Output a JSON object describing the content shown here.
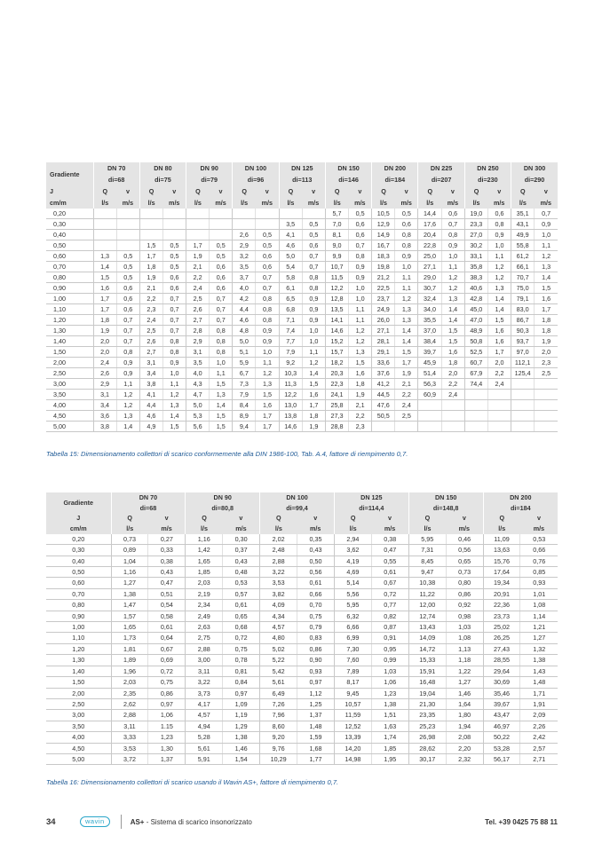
{
  "table1": {
    "gradient_header": [
      "Gradiente",
      "J",
      "cm/m"
    ],
    "groups": [
      [
        "DN 70",
        "di=68"
      ],
      [
        "DN 80",
        "di=75"
      ],
      [
        "DN 90",
        "di=79"
      ],
      [
        "DN 100",
        "di=96"
      ],
      [
        "DN 125",
        "di=113"
      ],
      [
        "DN 150",
        "di=146"
      ],
      [
        "DN 200",
        "di=184"
      ],
      [
        "DN 225",
        "di=207"
      ],
      [
        "DN 250",
        "di=230"
      ],
      [
        "DN 300",
        "di=290"
      ]
    ],
    "q_label": "Q",
    "v_label": "v",
    "q_unit": "l/s",
    "v_unit": "m/s",
    "rows": [
      [
        "0,20",
        "",
        "",
        "",
        "",
        "",
        "",
        "",
        "",
        "",
        "",
        "5,7",
        "0,5",
        "10,5",
        "0,5",
        "14,4",
        "0,6",
        "19,0",
        "0,6",
        "35,1",
        "0,7"
      ],
      [
        "0,30",
        "",
        "",
        "",
        "",
        "",
        "",
        "",
        "",
        "3,5",
        "0,5",
        "7,0",
        "0,6",
        "12,9",
        "0,6",
        "17,6",
        "0,7",
        "23,3",
        "0,8",
        "43,1",
        "0,9"
      ],
      [
        "0,40",
        "",
        "",
        "",
        "",
        "",
        "",
        "2,6",
        "0,5",
        "4,1",
        "0,5",
        "8,1",
        "0,6",
        "14,9",
        "0,8",
        "20,4",
        "0,8",
        "27,0",
        "0,9",
        "49,9",
        "1,0"
      ],
      [
        "0,50",
        "",
        "",
        "1,5",
        "0,5",
        "1,7",
        "0,5",
        "2,9",
        "0,5",
        "4,6",
        "0,6",
        "9,0",
        "0,7",
        "16,7",
        "0,8",
        "22,8",
        "0,9",
        "30,2",
        "1,0",
        "55,8",
        "1,1"
      ],
      [
        "0,60",
        "1,3",
        "0,5",
        "1,7",
        "0,5",
        "1,9",
        "0,5",
        "3,2",
        "0,6",
        "5,0",
        "0,7",
        "9,9",
        "0,8",
        "18,3",
        "0,9",
        "25,0",
        "1,0",
        "33,1",
        "1,1",
        "61,2",
        "1,2"
      ],
      [
        "0,70",
        "1,4",
        "0,5",
        "1,8",
        "0,5",
        "2,1",
        "0,6",
        "3,5",
        "0,6",
        "5,4",
        "0,7",
        "10,7",
        "0,9",
        "19,8",
        "1,0",
        "27,1",
        "1,1",
        "35,8",
        "1,2",
        "66,1",
        "1,3"
      ],
      [
        "0,80",
        "1,5",
        "0,5",
        "1,9",
        "0,6",
        "2,2",
        "0,6",
        "3,7",
        "0,7",
        "5,8",
        "0,8",
        "11,5",
        "0,9",
        "21,2",
        "1,1",
        "29,0",
        "1,2",
        "38,3",
        "1,2",
        "70,7",
        "1,4"
      ],
      [
        "0,90",
        "1,6",
        "0,6",
        "2,1",
        "0,6",
        "2,4",
        "0,6",
        "4,0",
        "0,7",
        "6,1",
        "0,8",
        "12,2",
        "1,0",
        "22,5",
        "1,1",
        "30,7",
        "1,2",
        "40,6",
        "1,3",
        "75,0",
        "1,5"
      ],
      [
        "1,00",
        "1,7",
        "0,6",
        "2,2",
        "0,7",
        "2,5",
        "0,7",
        "4,2",
        "0,8",
        "6,5",
        "0,9",
        "12,8",
        "1,0",
        "23,7",
        "1,2",
        "32,4",
        "1,3",
        "42,8",
        "1,4",
        "79,1",
        "1,6"
      ],
      [
        "1,10",
        "1,7",
        "0,6",
        "2,3",
        "0,7",
        "2,6",
        "0,7",
        "4,4",
        "0,8",
        "6,8",
        "0,9",
        "13,5",
        "1,1",
        "24,9",
        "1,3",
        "34,0",
        "1,4",
        "45,0",
        "1,4",
        "83,0",
        "1,7"
      ],
      [
        "1,20",
        "1,8",
        "0,7",
        "2,4",
        "0,7",
        "2,7",
        "0,7",
        "4,6",
        "0,8",
        "7,1",
        "0,9",
        "14,1",
        "1,1",
        "26,0",
        "1,3",
        "35,5",
        "1,4",
        "47,0",
        "1,5",
        "86,7",
        "1,8"
      ],
      [
        "1,30",
        "1,9",
        "0,7",
        "2,5",
        "0,7",
        "2,8",
        "0,8",
        "4,8",
        "0,9",
        "7,4",
        "1,0",
        "14,6",
        "1,2",
        "27,1",
        "1,4",
        "37,0",
        "1,5",
        "48,9",
        "1,6",
        "90,3",
        "1,8"
      ],
      [
        "1,40",
        "2,0",
        "0,7",
        "2,6",
        "0,8",
        "2,9",
        "0,8",
        "5,0",
        "0,9",
        "7,7",
        "1,0",
        "15,2",
        "1,2",
        "28,1",
        "1,4",
        "38,4",
        "1,5",
        "50,8",
        "1,6",
        "93,7",
        "1,9"
      ],
      [
        "1,50",
        "2,0",
        "0,8",
        "2,7",
        "0,8",
        "3,1",
        "0,8",
        "5,1",
        "1,0",
        "7,9",
        "1,1",
        "15,7",
        "1,3",
        "29,1",
        "1,5",
        "39,7",
        "1,6",
        "52,5",
        "1,7",
        "97,0",
        "2,0"
      ],
      [
        "2,00",
        "2,4",
        "0,9",
        "3,1",
        "0,9",
        "3,5",
        "1,0",
        "5,9",
        "1,1",
        "9,2",
        "1,2",
        "18,2",
        "1,5",
        "33,6",
        "1,7",
        "45,9",
        "1,8",
        "60,7",
        "2,0",
        "112,1",
        "2,3"
      ],
      [
        "2,50",
        "2,6",
        "0,9",
        "3,4",
        "1,0",
        "4,0",
        "1,1",
        "6,7",
        "1,2",
        "10,3",
        "1,4",
        "20,3",
        "1,6",
        "37,6",
        "1,9",
        "51,4",
        "2,0",
        "67,9",
        "2,2",
        "125,4",
        "2,5"
      ],
      [
        "3,00",
        "2,9",
        "1,1",
        "3,8",
        "1,1",
        "4,3",
        "1,5",
        "7,3",
        "1,3",
        "11,3",
        "1,5",
        "22,3",
        "1,8",
        "41,2",
        "2,1",
        "56,3",
        "2,2",
        "74,4",
        "2,4",
        "",
        ""
      ],
      [
        "3,50",
        "3,1",
        "1,2",
        "4,1",
        "1,2",
        "4,7",
        "1,3",
        "7,9",
        "1,5",
        "12,2",
        "1,6",
        "24,1",
        "1,9",
        "44,5",
        "2,2",
        "60,9",
        "2,4",
        "",
        "",
        "",
        ""
      ],
      [
        "4,00",
        "3,4",
        "1,2",
        "4,4",
        "1,3",
        "5,0",
        "1,4",
        "8,4",
        "1,6",
        "13,0",
        "1,7",
        "25,8",
        "2,1",
        "47,6",
        "2,4",
        "",
        "",
        "",
        "",
        "",
        ""
      ],
      [
        "4,50",
        "3,6",
        "1,3",
        "4,6",
        "1,4",
        "5,3",
        "1,5",
        "8,9",
        "1,7",
        "13,8",
        "1,8",
        "27,3",
        "2,2",
        "50,5",
        "2,5",
        "",
        "",
        "",
        "",
        "",
        ""
      ],
      [
        "5,00",
        "3,8",
        "1,4",
        "4,9",
        "1,5",
        "5,6",
        "1,5",
        "9,4",
        "1,7",
        "14,6",
        "1,9",
        "28,8",
        "2,3",
        "",
        "",
        "",
        "",
        "",
        "",
        "",
        ""
      ]
    ],
    "caption": "Tabella 15: Dimensionamento collettori di scarico conformemente alla DIN 1986-100, Tab. A.4, fattore di riempimento 0,7."
  },
  "table2": {
    "gradient_header": [
      "Gradiente",
      "J",
      "cm/m"
    ],
    "groups": [
      [
        "DN 70",
        "di=68"
      ],
      [
        "DN 90",
        "di=80,8"
      ],
      [
        "DN 100",
        "di=99,4"
      ],
      [
        "DN 125",
        "di=114,4"
      ],
      [
        "DN 150",
        "di=148,8"
      ],
      [
        "DN 200",
        "di=184"
      ]
    ],
    "q_label": "Q",
    "v_label": "v",
    "q_unit": "l/s",
    "v_unit": "m/s",
    "rows": [
      [
        "0,20",
        "0,73",
        "0,27",
        "1,16",
        "0,30",
        "2,02",
        "0,35",
        "2,94",
        "0,38",
        "5,95",
        "0,46",
        "11,09",
        "0,53"
      ],
      [
        "0,30",
        "0,89",
        "0,33",
        "1,42",
        "0,37",
        "2,48",
        "0,43",
        "3,62",
        "0,47",
        "7,31",
        "0,56",
        "13,63",
        "0,66"
      ],
      [
        "0,40",
        "1,04",
        "0,38",
        "1,65",
        "0,43",
        "2,88",
        "0,50",
        "4,19",
        "0,55",
        "8,45",
        "0,65",
        "15,76",
        "0,76"
      ],
      [
        "0,50",
        "1,16",
        "0,43",
        "1,85",
        "0,48",
        "3,22",
        "0,56",
        "4,69",
        "0,61",
        "9,47",
        "0,73",
        "17,64",
        "0,85"
      ],
      [
        "0,60",
        "1,27",
        "0,47",
        "2,03",
        "0,53",
        "3,53",
        "0,61",
        "5,14",
        "0,67",
        "10,38",
        "0,80",
        "19,34",
        "0,93"
      ],
      [
        "0,70",
        "1,38",
        "0,51",
        "2,19",
        "0,57",
        "3,82",
        "0,66",
        "5,56",
        "0,72",
        "11,22",
        "0,86",
        "20,91",
        "1,01"
      ],
      [
        "0,80",
        "1,47",
        "0,54",
        "2,34",
        "0,61",
        "4,09",
        "0,70",
        "5,95",
        "0,77",
        "12,00",
        "0,92",
        "22,36",
        "1,08"
      ],
      [
        "0,90",
        "1,57",
        "0,58",
        "2,49",
        "0,65",
        "4,34",
        "0,75",
        "6,32",
        "0,82",
        "12,74",
        "0,98",
        "23,73",
        "1,14"
      ],
      [
        "1,00",
        "1,65",
        "0,61",
        "2,63",
        "0,68",
        "4,57",
        "0,79",
        "6,66",
        "0,87",
        "13,43",
        "1,03",
        "25,02",
        "1,21"
      ],
      [
        "1,10",
        "1,73",
        "0,64",
        "2,75",
        "0,72",
        "4,80",
        "0,83",
        "6,99",
        "0,91",
        "14,09",
        "1,08",
        "26,25",
        "1,27"
      ],
      [
        "1,20",
        "1,81",
        "0,67",
        "2,88",
        "0,75",
        "5,02",
        "0,86",
        "7,30",
        "0,95",
        "14,72",
        "1,13",
        "27,43",
        "1,32"
      ],
      [
        "1,30",
        "1,89",
        "0,69",
        "3,00",
        "0,78",
        "5,22",
        "0,90",
        "7,60",
        "0,99",
        "15,33",
        "1,18",
        "28,55",
        "1,38"
      ],
      [
        "1,40",
        "1,96",
        "0,72",
        "3,11",
        "0,81",
        "5,42",
        "0,93",
        "7,89",
        "1,03",
        "15,91",
        "1,22",
        "29,64",
        "1,43"
      ],
      [
        "1,50",
        "2,03",
        "0,75",
        "3,22",
        "0,84",
        "5,61",
        "0,97",
        "8,17",
        "1,06",
        "16,48",
        "1,27",
        "30,69",
        "1,48"
      ],
      [
        "2,00",
        "2,35",
        "0,86",
        "3,73",
        "0,97",
        "6,49",
        "1,12",
        "9,45",
        "1,23",
        "19,04",
        "1,46",
        "35,46",
        "1,71"
      ],
      [
        "2,50",
        "2,62",
        "0,97",
        "4,17",
        "1,09",
        "7,26",
        "1,25",
        "10,57",
        "1,38",
        "21,30",
        "1,64",
        "39,67",
        "1,91"
      ],
      [
        "3,00",
        "2,88",
        "1,06",
        "4,57",
        "1,19",
        "7,96",
        "1,37",
        "11,59",
        "1,51",
        "23,35",
        "1,80",
        "43,47",
        "2,09"
      ],
      [
        "3,50",
        "3,11",
        "1.15",
        "4,94",
        "1,29",
        "8,60",
        "1,48",
        "12,52",
        "1,63",
        "25,23",
        "1,94",
        "46,97",
        "2,26"
      ],
      [
        "4,00",
        "3,33",
        "1,23",
        "5,28",
        "1,38",
        "9,20",
        "1,59",
        "13,39",
        "1,74",
        "26,98",
        "2,08",
        "50,22",
        "2,42"
      ],
      [
        "4,50",
        "3,53",
        "1,30",
        "5,61",
        "1,46",
        "9,76",
        "1,68",
        "14,20",
        "1,85",
        "28,62",
        "2,20",
        "53,28",
        "2,57"
      ],
      [
        "5,00",
        "3,72",
        "1,37",
        "5,91",
        "1,54",
        "10,29",
        "1,77",
        "14,98",
        "1,95",
        "30,17",
        "2,32",
        "56,17",
        "2,71"
      ]
    ],
    "caption": "Tabella 16: Dimensionamento collettori di scarico usando il Wavin AS+, fattore di riempimento 0,7."
  },
  "footer": {
    "page_number": "34",
    "logo_text": "wavin",
    "product": "AS+",
    "subtitle": " - Sistema di scarico insonorizzato",
    "phone": "Tel. +39 0425 75 88 11"
  },
  "colors": {
    "caption": "#1f5a96",
    "header_bg": "#e4e4e4",
    "logo": "#2aa6c9"
  }
}
